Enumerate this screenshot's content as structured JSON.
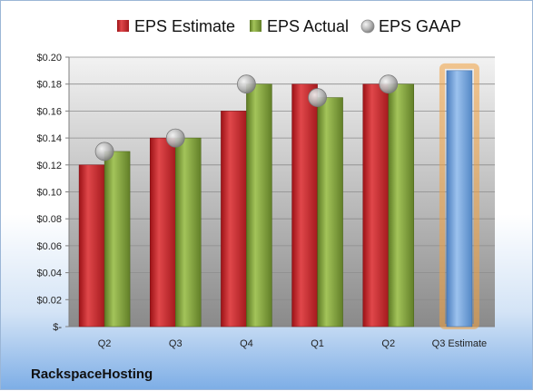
{
  "company": "RackspaceHosting",
  "chart_data": {
    "type": "bar",
    "categories": [
      "Q2",
      "Q3",
      "Q4",
      "Q1",
      "Q2",
      "Q3 Estimate"
    ],
    "series": [
      {
        "name": "EPS Estimate",
        "values": [
          0.12,
          0.14,
          0.16,
          0.18,
          0.18,
          null
        ],
        "color": "#c0262c"
      },
      {
        "name": "EPS Actual",
        "values": [
          0.13,
          0.14,
          0.18,
          0.17,
          0.18,
          null
        ],
        "color": "#7e9e3a"
      },
      {
        "name": "EPS GAAP",
        "values": [
          0.13,
          0.14,
          0.18,
          0.17,
          0.18,
          null
        ],
        "color": "#b8b8b8",
        "marker": "circle"
      },
      {
        "name": "Q3 Estimate",
        "values": [
          null,
          null,
          null,
          null,
          null,
          0.19
        ],
        "color": "#6f9fd8",
        "highlight": "#f0a040"
      }
    ],
    "legend": [
      "EPS Estimate",
      "EPS Actual",
      "EPS GAAP"
    ],
    "yticks": [
      "$-",
      "$0.02",
      "$0.04",
      "$0.06",
      "$0.08",
      "$0.10",
      "$0.12",
      "$0.14",
      "$0.16",
      "$0.18",
      "$0.20"
    ],
    "ylim": [
      0,
      0.2
    ],
    "legend_position": "top",
    "grid": true
  }
}
